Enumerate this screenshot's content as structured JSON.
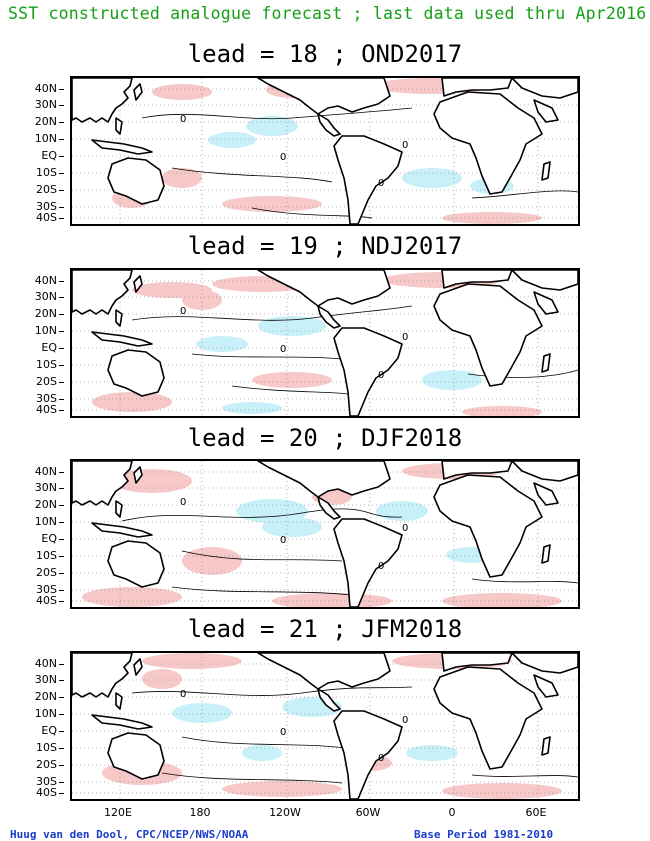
{
  "header": {
    "title": "SST constructed analogue forecast ; last data used thru Apr2016"
  },
  "panels": [
    {
      "title": "lead = 18 ; OND2017"
    },
    {
      "title": "lead = 19 ; NDJ2017"
    },
    {
      "title": "lead = 20 ; DJF2018"
    },
    {
      "title": "lead = 21 ; JFM2018"
    }
  ],
  "axes": {
    "lat_labels": [
      "40N",
      "30N",
      "20N",
      "10N",
      "EQ",
      "10S",
      "20S",
      "30S",
      "40S"
    ],
    "lon_labels": [
      "120E",
      "180",
      "120W",
      "60W",
      "0",
      "60E"
    ]
  },
  "contour_label": "0",
  "colors": {
    "title": "#14a014",
    "footer": "#1a3cc8",
    "warm": "#f7c8c8",
    "cool": "#c8f0f8"
  },
  "footer": {
    "left": "Huug van den Dool, CPC/NCEP/NWS/NOAA",
    "right": "Base Period 1981-2010"
  }
}
